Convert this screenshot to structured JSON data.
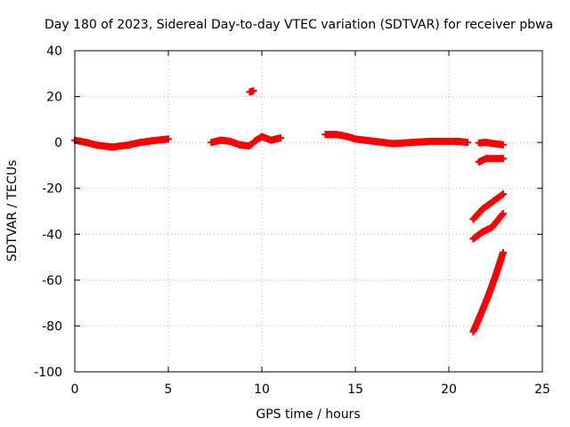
{
  "chart_data": {
    "type": "scatter",
    "title": "Day 180 of 2023, Sidereal Day-to-day VTEC variation (SDTVAR) for receiver pbwa",
    "xlabel": "GPS time / hours",
    "ylabel": "SDTVAR / TECUs",
    "xlim": [
      0,
      25
    ],
    "ylim": [
      -100,
      40
    ],
    "xticks": [
      "0",
      "5",
      "10",
      "15",
      "20",
      "25"
    ],
    "yticks": [
      "-100",
      "-80",
      "-60",
      "-40",
      "-20",
      "0",
      "20",
      "40"
    ],
    "grid": true,
    "color": "#ff0000",
    "segments": [
      {
        "points": [
          [
            0.0,
            1.0
          ],
          [
            0.6,
            0.0
          ],
          [
            1.2,
            -1.2
          ],
          [
            2.0,
            -2.0
          ],
          [
            2.8,
            -1.2
          ],
          [
            3.5,
            0.0
          ],
          [
            4.2,
            0.8
          ],
          [
            5.0,
            1.5
          ]
        ]
      },
      {
        "points": [
          [
            7.3,
            0.0
          ],
          [
            7.8,
            1.0
          ],
          [
            8.3,
            0.5
          ],
          [
            8.8,
            -1.0
          ],
          [
            9.3,
            -1.5
          ],
          [
            9.5,
            -0.5
          ]
        ]
      },
      {
        "points": [
          [
            9.35,
            22.0
          ],
          [
            9.55,
            22.5
          ]
        ]
      },
      {
        "points": [
          [
            9.6,
            0.5
          ],
          [
            10.0,
            2.5
          ],
          [
            10.5,
            1.0
          ],
          [
            11.0,
            2.0
          ]
        ]
      },
      {
        "points": [
          [
            13.4,
            3.5
          ],
          [
            14.0,
            3.5
          ],
          [
            14.6,
            2.5
          ],
          [
            15.0,
            1.5
          ],
          [
            16.0,
            0.5
          ],
          [
            17.0,
            -0.5
          ],
          [
            18.0,
            0.0
          ],
          [
            19.0,
            0.5
          ],
          [
            20.0,
            0.5
          ],
          [
            20.5,
            0.5
          ],
          [
            21.0,
            0.0
          ]
        ]
      },
      {
        "points": [
          [
            21.6,
            -0.2
          ],
          [
            22.0,
            0.0
          ],
          [
            22.4,
            -0.5
          ],
          [
            22.9,
            -1.0
          ]
        ]
      },
      {
        "points": [
          [
            21.6,
            -8.5
          ],
          [
            22.0,
            -7.0
          ],
          [
            22.9,
            -7.0
          ]
        ]
      },
      {
        "points": [
          [
            21.3,
            -33.5
          ],
          [
            21.8,
            -29.0
          ],
          [
            22.4,
            -25.5
          ],
          [
            22.9,
            -22.5
          ]
        ]
      },
      {
        "points": [
          [
            21.3,
            -42.0
          ],
          [
            21.8,
            -39.0
          ],
          [
            22.3,
            -37.0
          ],
          [
            22.9,
            -31.0
          ]
        ]
      },
      {
        "points": [
          [
            21.3,
            -82.5
          ],
          [
            21.7,
            -75.0
          ],
          [
            22.1,
            -67.0
          ],
          [
            22.5,
            -58.0
          ],
          [
            22.9,
            -48.0
          ]
        ]
      }
    ]
  }
}
